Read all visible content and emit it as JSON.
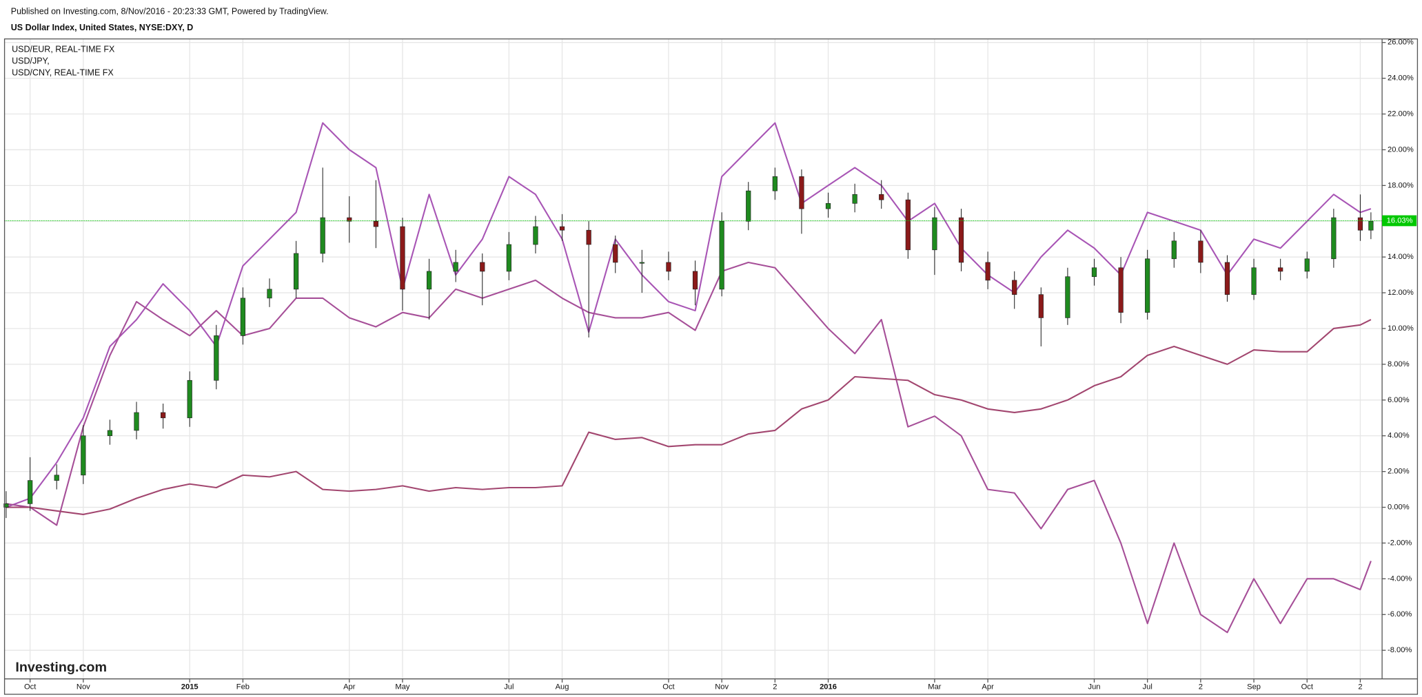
{
  "chart_data": {
    "type": "candlestick",
    "header": "Published on Investing.com, 8/Nov/2016 - 20:23:33 GMT, Powered by TradingView.",
    "title": "US Dollar Index, United States, NYSE:DXY, D",
    "watermark": "Investing.com",
    "grid": true,
    "legend": "top-left",
    "xlim": [
      -0.48,
      25.41
    ],
    "xticks": [
      {
        "value": 0,
        "label": "Oct"
      },
      {
        "value": 1,
        "label": "Nov"
      },
      {
        "value": 3,
        "label": "2015"
      },
      {
        "value": 4,
        "label": "Feb"
      },
      {
        "value": 6,
        "label": "Apr"
      },
      {
        "value": 7,
        "label": "May"
      },
      {
        "value": 9,
        "label": "Jul"
      },
      {
        "value": 10,
        "label": "Aug"
      },
      {
        "value": 12,
        "label": "Oct"
      },
      {
        "value": 13,
        "label": "Nov"
      },
      {
        "value": 14,
        "label": "2"
      },
      {
        "value": 15,
        "label": "2016"
      },
      {
        "value": 17,
        "label": "Mar"
      },
      {
        "value": 18,
        "label": "Apr"
      },
      {
        "value": 20,
        "label": "Jun"
      },
      {
        "value": 21,
        "label": "Jul"
      },
      {
        "value": 22,
        "label": "2"
      },
      {
        "value": 23,
        "label": "Sep"
      },
      {
        "value": 24,
        "label": "Oct"
      },
      {
        "value": 25,
        "label": "2"
      }
    ],
    "ylim": [
      -9.6,
      26.2
    ],
    "yticks": [
      {
        "value": -8,
        "label": "-8.00%"
      },
      {
        "value": -6,
        "label": "-6.00%"
      },
      {
        "value": -4,
        "label": "-4.00%"
      },
      {
        "value": -2,
        "label": "-2.00%"
      },
      {
        "value": 0,
        "label": "0.00%"
      },
      {
        "value": 2,
        "label": "2.00%"
      },
      {
        "value": 4,
        "label": "4.00%"
      },
      {
        "value": 6,
        "label": "6.00%"
      },
      {
        "value": 8,
        "label": "8.00%"
      },
      {
        "value": 10,
        "label": "10.00%"
      },
      {
        "value": 12,
        "label": "12.00%"
      },
      {
        "value": 14,
        "label": "14.00%"
      },
      {
        "value": 16,
        "label": "16.00%"
      },
      {
        "value": 18,
        "label": "18.00%"
      },
      {
        "value": 20,
        "label": "20.00%"
      },
      {
        "value": 22,
        "label": "22.00%"
      },
      {
        "value": 24,
        "label": "24.00%"
      },
      {
        "value": 26,
        "label": "26.00%"
      }
    ],
    "last_value": {
      "value": 16.03,
      "label": "16.03%"
    },
    "last_value_color": "#00c800",
    "x": [
      -0.45,
      0,
      0.5,
      1,
      1.5,
      2,
      2.5,
      3,
      3.5,
      4,
      4.5,
      5,
      5.5,
      6,
      6.5,
      7,
      7.5,
      8,
      8.5,
      9,
      9.5,
      10,
      10.5,
      11,
      11.5,
      12,
      12.5,
      13,
      13.5,
      14,
      14.5,
      15,
      15.5,
      16,
      16.5,
      17,
      17.5,
      18,
      18.5,
      19,
      19.5,
      20,
      20.5,
      21,
      21.5,
      22,
      22.5,
      23,
      23.5,
      24,
      24.5,
      25,
      25.2
    ],
    "ohlc": {
      "up_color": "#1f8a1f",
      "down_color": "#8b1a1a",
      "open": [
        0.0,
        0.2,
        1.5,
        1.8,
        4.0,
        4.3,
        5.3,
        5.0,
        7.1,
        9.6,
        11.7,
        12.2,
        14.2,
        16.2,
        16.0,
        15.7,
        12.2,
        13.2,
        13.7,
        13.2,
        14.7,
        15.7,
        15.5,
        14.7,
        13.7,
        13.7,
        13.2,
        12.2,
        16.0,
        17.7,
        18.5,
        16.7,
        17.0,
        17.5,
        17.2,
        14.4,
        16.2,
        13.7,
        12.7,
        11.9,
        10.6,
        12.9,
        13.4,
        10.9,
        13.9,
        14.9,
        13.7,
        11.9,
        13.4,
        13.2,
        13.9,
        16.2,
        15.5
      ],
      "high": [
        0.9,
        2.8,
        2.4,
        4.6,
        4.9,
        5.9,
        5.8,
        7.6,
        10.2,
        12.3,
        12.8,
        14.9,
        19.0,
        17.4,
        18.3,
        16.2,
        13.9,
        14.4,
        14.2,
        15.4,
        16.3,
        16.4,
        16.0,
        15.2,
        14.4,
        14.3,
        13.8,
        16.5,
        18.2,
        19.0,
        18.9,
        17.6,
        18.1,
        18.3,
        17.6,
        16.8,
        16.7,
        14.3,
        13.2,
        12.3,
        13.4,
        13.9,
        14.0,
        14.4,
        15.4,
        15.5,
        14.1,
        13.9,
        13.9,
        14.3,
        16.7,
        17.5,
        16.5
      ],
      "low": [
        -0.6,
        -0.2,
        1.0,
        1.3,
        3.5,
        3.8,
        4.4,
        4.5,
        6.6,
        9.1,
        11.2,
        11.7,
        13.7,
        14.8,
        14.5,
        11.0,
        10.5,
        12.6,
        11.3,
        12.7,
        14.2,
        14.9,
        9.5,
        13.1,
        12.0,
        12.7,
        11.3,
        11.8,
        15.5,
        17.2,
        15.3,
        16.2,
        16.5,
        16.7,
        13.9,
        13.0,
        13.2,
        12.2,
        11.1,
        9.0,
        10.2,
        12.4,
        10.3,
        10.5,
        13.4,
        13.1,
        11.5,
        11.6,
        12.7,
        12.8,
        13.4,
        14.9,
        15.0
      ],
      "close": [
        0.2,
        1.5,
        1.8,
        4.0,
        4.3,
        5.3,
        5.0,
        7.1,
        9.6,
        11.7,
        12.2,
        14.2,
        16.2,
        16.0,
        15.7,
        12.2,
        13.2,
        13.7,
        13.2,
        14.7,
        15.7,
        15.5,
        14.7,
        13.7,
        13.7,
        13.2,
        12.2,
        16.0,
        17.7,
        18.5,
        16.7,
        17.0,
        17.5,
        17.2,
        14.4,
        16.2,
        13.7,
        12.7,
        11.9,
        10.6,
        12.9,
        13.4,
        10.9,
        13.9,
        14.9,
        13.7,
        11.9,
        13.4,
        13.2,
        13.9,
        16.2,
        15.5,
        16.0
      ]
    },
    "series": [
      {
        "name": "USD/EUR, REAL-TIME FX",
        "color": "#a855b5",
        "values": [
          0,
          0.5,
          2.5,
          5.0,
          9.0,
          10.5,
          12.5,
          11.0,
          9.0,
          13.5,
          15.0,
          16.5,
          21.5,
          20.0,
          19.0,
          12.2,
          17.5,
          13.0,
          15.0,
          18.5,
          17.5,
          15.0,
          9.8,
          15.0,
          13.0,
          11.5,
          11.0,
          18.5,
          20.0,
          21.5,
          17.0,
          18.0,
          19.0,
          18.0,
          16.0,
          17.0,
          14.5,
          13.0,
          12.0,
          14.0,
          15.5,
          14.5,
          13.0,
          16.5,
          16.0,
          15.5,
          13.0,
          15.0,
          14.5,
          16.0,
          17.5,
          16.5,
          16.7
        ]
      },
      {
        "name": "USD/JPY,",
        "color": "#a64f98",
        "values": [
          0.2,
          0,
          -1.0,
          4.5,
          8.5,
          11.5,
          10.5,
          9.6,
          11.0,
          9.6,
          10.0,
          11.7,
          11.7,
          10.6,
          10.1,
          10.9,
          10.6,
          12.2,
          11.7,
          12.2,
          12.7,
          11.7,
          10.9,
          10.6,
          10.6,
          10.9,
          9.9,
          13.2,
          13.7,
          13.4,
          11.7,
          10.0,
          8.6,
          10.5,
          4.5,
          5.1,
          4.0,
          1.0,
          0.8,
          -1.2,
          1.0,
          1.5,
          -2.0,
          -6.5,
          -2.0,
          -6.0,
          -7.0,
          -4.0,
          -6.5,
          -4.0,
          -4.0,
          -4.6,
          -3.0
        ]
      },
      {
        "name": "USD/CNY, REAL-TIME FX",
        "color": "#a2466f",
        "values": [
          0,
          0,
          -0.2,
          -0.4,
          -0.1,
          0.5,
          1.0,
          1.3,
          1.1,
          1.8,
          1.7,
          2.0,
          1.0,
          0.9,
          1.0,
          1.2,
          0.9,
          1.1,
          1.0,
          1.1,
          1.1,
          1.2,
          4.2,
          3.8,
          3.9,
          3.4,
          3.5,
          3.5,
          4.1,
          4.3,
          5.5,
          6.0,
          7.3,
          7.2,
          7.1,
          6.3,
          6.0,
          5.5,
          5.3,
          5.5,
          6.0,
          6.8,
          7.3,
          8.5,
          9.0,
          8.5,
          8.0,
          8.8,
          8.7,
          8.7,
          10.0,
          10.2,
          10.5
        ]
      }
    ]
  }
}
